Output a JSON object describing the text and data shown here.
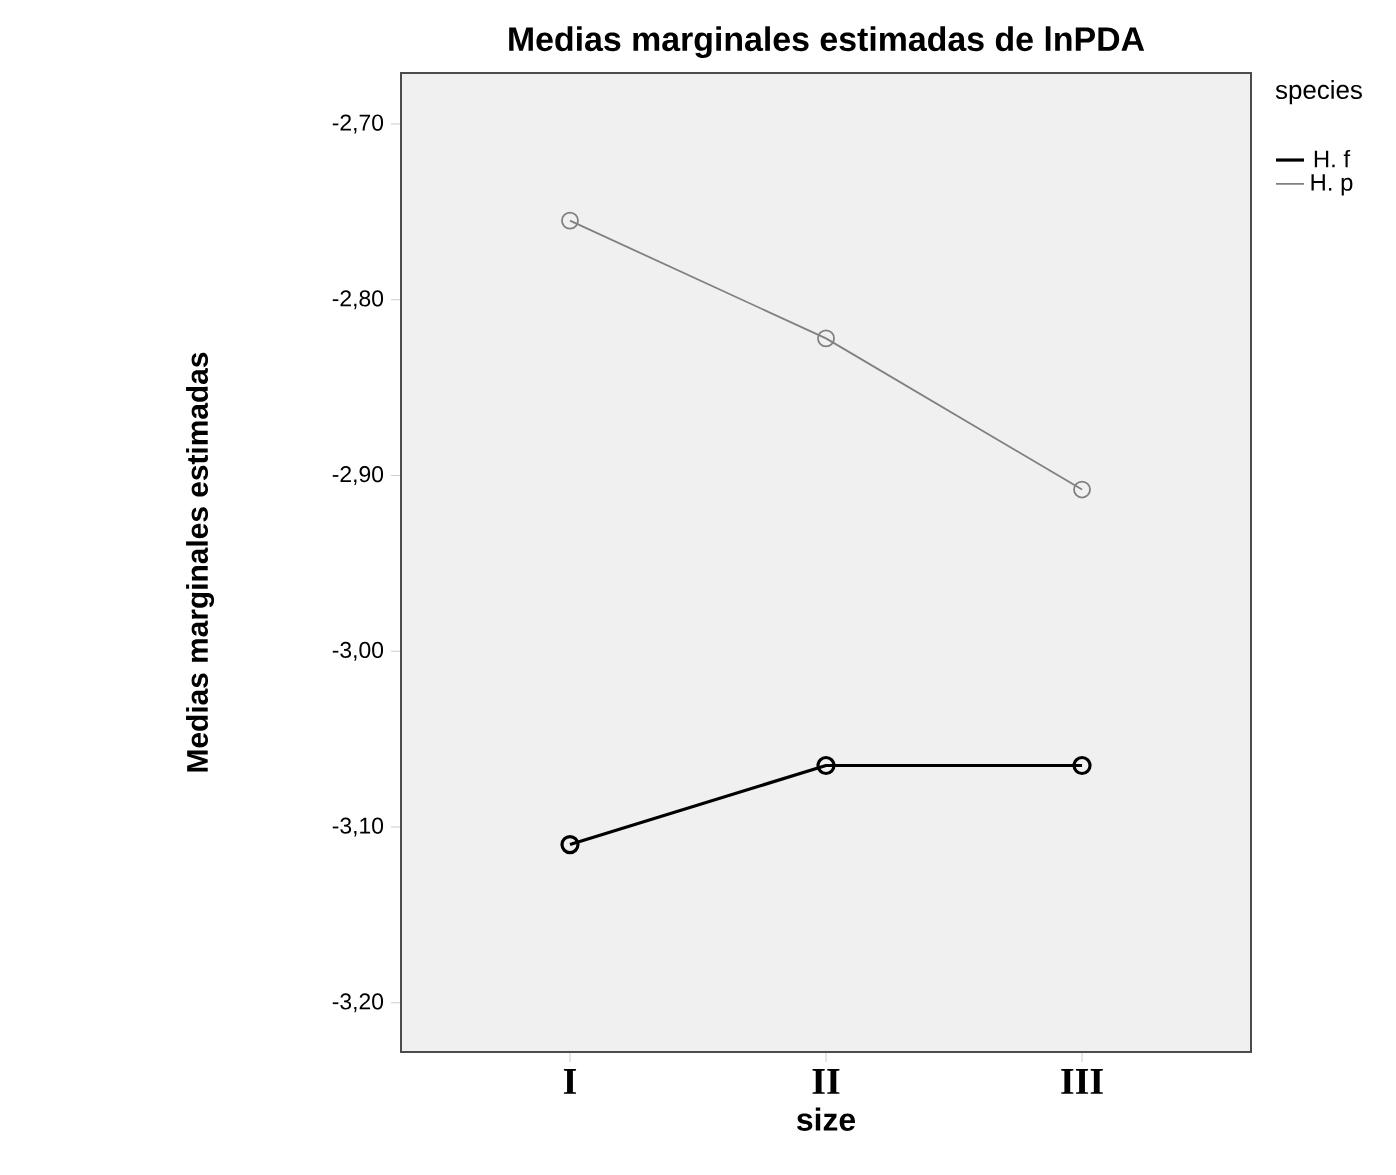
{
  "chart_data": {
    "type": "line",
    "title": "Medias marginales estimadas de lnPDA",
    "xlabel": "size",
    "ylabel": "Medias marginales estimadas",
    "legend_title": "species",
    "categories": [
      "I",
      "II",
      "III"
    ],
    "series": [
      {
        "name": "H. f",
        "color": "#000000",
        "values": [
          -3.11,
          -3.065,
          -3.065
        ]
      },
      {
        "name": "H. p",
        "color": "#808080",
        "values": [
          -2.755,
          -2.822,
          -2.908
        ]
      }
    ],
    "ylim": [
      -3.228,
      -2.671
    ],
    "yticks": [
      {
        "value": -3.2,
        "label": "-3,20"
      },
      {
        "value": -3.1,
        "label": "-3,10"
      },
      {
        "value": -3.0,
        "label": "-3,00"
      },
      {
        "value": -2.9,
        "label": "-2,90"
      },
      {
        "value": -2.8,
        "label": "-2,80"
      },
      {
        "value": -2.7,
        "label": "-2,70"
      }
    ],
    "legend": "top right",
    "marker": "circle",
    "line_style": "solid",
    "grid": false
  }
}
